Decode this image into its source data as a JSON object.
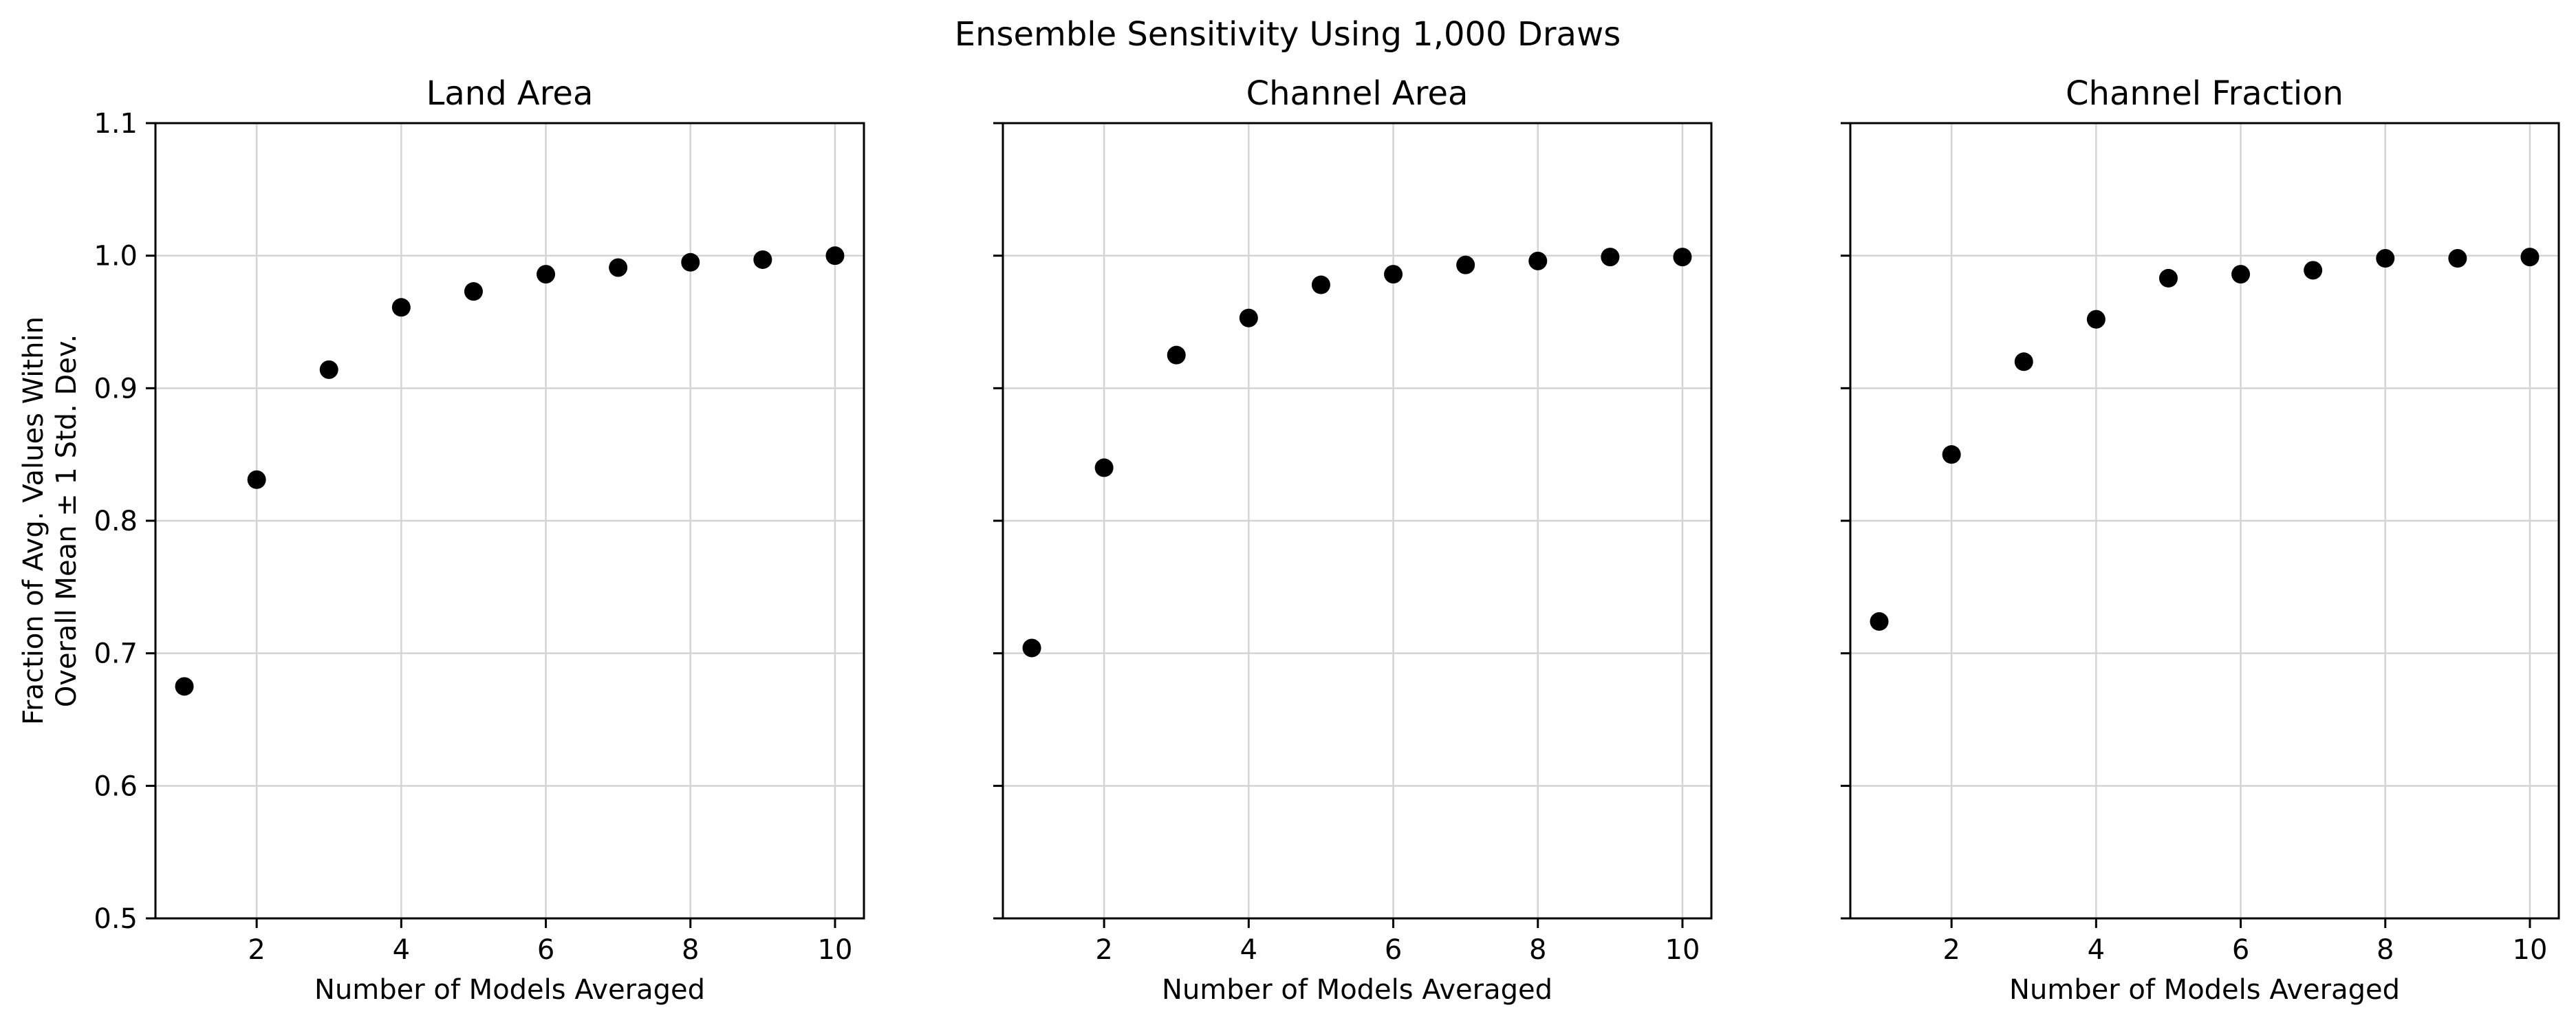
{
  "figure": {
    "title": "Ensemble Sensitivity Using 1,000 Draws"
  },
  "chart_data": [
    {
      "type": "scatter",
      "title": "Land Area",
      "xlabel": "Number of Models Averaged",
      "ylabel": "Fraction of Avg. Values Within\nOverall Mean ± 1 Std. Dev.",
      "xlim": [
        0.6,
        10.4
      ],
      "ylim": [
        0.5,
        1.1
      ],
      "xticks": [
        2,
        4,
        6,
        8,
        10
      ],
      "yticks": [
        0.5,
        0.6,
        0.7,
        0.8,
        0.9,
        1.0,
        1.1
      ],
      "ytick_labels_visible": true,
      "grid": true,
      "marker_color": "#000000",
      "x": [
        1,
        2,
        3,
        4,
        5,
        6,
        7,
        8,
        9,
        10
      ],
      "y": [
        0.675,
        0.831,
        0.914,
        0.961,
        0.973,
        0.986,
        0.991,
        0.995,
        0.997,
        1.0
      ]
    },
    {
      "type": "scatter",
      "title": "Channel Area",
      "xlabel": "Number of Models Averaged",
      "ylabel": "",
      "xlim": [
        0.6,
        10.4
      ],
      "ylim": [
        0.5,
        1.1
      ],
      "xticks": [
        2,
        4,
        6,
        8,
        10
      ],
      "yticks": [
        0.5,
        0.6,
        0.7,
        0.8,
        0.9,
        1.0,
        1.1
      ],
      "ytick_labels_visible": false,
      "grid": true,
      "marker_color": "#000000",
      "x": [
        1,
        2,
        3,
        4,
        5,
        6,
        7,
        8,
        9,
        10
      ],
      "y": [
        0.704,
        0.84,
        0.925,
        0.953,
        0.978,
        0.986,
        0.993,
        0.996,
        0.999,
        0.999
      ]
    },
    {
      "type": "scatter",
      "title": "Channel Fraction",
      "xlabel": "Number of Models Averaged",
      "ylabel": "",
      "xlim": [
        0.6,
        10.4
      ],
      "ylim": [
        0.5,
        1.1
      ],
      "xticks": [
        2,
        4,
        6,
        8,
        10
      ],
      "yticks": [
        0.5,
        0.6,
        0.7,
        0.8,
        0.9,
        1.0,
        1.1
      ],
      "ytick_labels_visible": false,
      "grid": true,
      "marker_color": "#000000",
      "x": [
        1,
        2,
        3,
        4,
        5,
        6,
        7,
        8,
        9,
        10
      ],
      "y": [
        0.724,
        0.85,
        0.92,
        0.952,
        0.983,
        0.986,
        0.989,
        0.998,
        0.998,
        0.999
      ]
    }
  ]
}
